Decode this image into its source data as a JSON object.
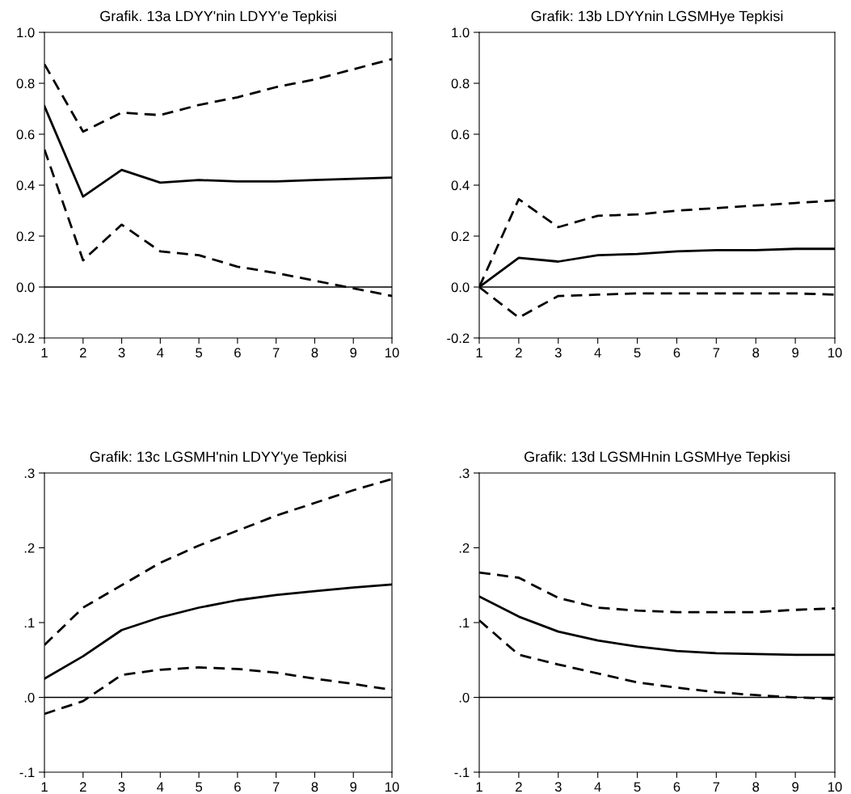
{
  "chart_data": [
    {
      "type": "line",
      "title": "Grafik. 13a LDYY'nin LDYY'e Tepkisi",
      "x": [
        1,
        2,
        3,
        4,
        5,
        6,
        7,
        8,
        9,
        10
      ],
      "xlim": [
        1,
        10
      ],
      "xticks": [
        1,
        2,
        3,
        4,
        5,
        6,
        7,
        8,
        9,
        10
      ],
      "ylim": [
        -0.2,
        1.0
      ],
      "yticks": [
        {
          "value": -0.2,
          "label": "-0.2"
        },
        {
          "value": 0,
          "label": "0.0"
        },
        {
          "value": 0.2,
          "label": "0.2"
        },
        {
          "value": 0.4,
          "label": "0.4"
        },
        {
          "value": 0.6,
          "label": "0.6"
        },
        {
          "value": 0.8,
          "label": "0.8"
        },
        {
          "value": 1.0,
          "label": "1.0"
        }
      ],
      "grid": false,
      "legend": false,
      "ref_lines": [
        {
          "axis": "y",
          "value": 0,
          "color": "#000000",
          "line_style": "solid"
        }
      ],
      "series": [
        {
          "color": "#000000",
          "line_style": "solid",
          "values": [
            0.71,
            0.355,
            0.46,
            0.41,
            0.42,
            0.415,
            0.415,
            0.42,
            0.425,
            0.43
          ]
        },
        {
          "color": "#000000",
          "line_style": "dashed",
          "values": [
            0.875,
            0.61,
            0.685,
            0.675,
            0.715,
            0.745,
            0.785,
            0.815,
            0.855,
            0.895
          ]
        },
        {
          "color": "#000000",
          "line_style": "dashed",
          "values": [
            0.54,
            0.105,
            0.245,
            0.14,
            0.125,
            0.08,
            0.055,
            0.025,
            -0.005,
            -0.035
          ]
        }
      ]
    },
    {
      "type": "line",
      "title": "Grafik: 13b LDYYnin LGSMHye Tepkisi",
      "x": [
        1,
        2,
        3,
        4,
        5,
        6,
        7,
        8,
        9,
        10
      ],
      "xlim": [
        1,
        10
      ],
      "xticks": [
        1,
        2,
        3,
        4,
        5,
        6,
        7,
        8,
        9,
        10
      ],
      "ylim": [
        -0.2,
        1.0
      ],
      "yticks": [
        {
          "value": -0.2,
          "label": "-0.2"
        },
        {
          "value": 0,
          "label": "0.0"
        },
        {
          "value": 0.2,
          "label": "0.2"
        },
        {
          "value": 0.4,
          "label": "0.4"
        },
        {
          "value": 0.6,
          "label": "0.6"
        },
        {
          "value": 0.8,
          "label": "0.8"
        },
        {
          "value": 1.0,
          "label": "1.0"
        }
      ],
      "grid": false,
      "legend": false,
      "ref_lines": [
        {
          "axis": "y",
          "value": 0,
          "color": "#000000",
          "line_style": "solid"
        }
      ],
      "series": [
        {
          "color": "#000000",
          "line_style": "solid",
          "values": [
            0,
            0.115,
            0.1,
            0.125,
            0.13,
            0.14,
            0.145,
            0.145,
            0.15,
            0.15
          ]
        },
        {
          "color": "#000000",
          "line_style": "dashed",
          "values": [
            0,
            0.345,
            0.235,
            0.28,
            0.285,
            0.3,
            0.31,
            0.32,
            0.33,
            0.34
          ]
        },
        {
          "color": "#000000",
          "line_style": "dashed",
          "values": [
            0,
            -0.12,
            -0.035,
            -0.03,
            -0.025,
            -0.025,
            -0.025,
            -0.025,
            -0.025,
            -0.03
          ]
        }
      ]
    },
    {
      "type": "line",
      "title": "Grafik: 13c LGSMH'nin LDYY'ye Tepkisi",
      "x": [
        1,
        2,
        3,
        4,
        5,
        6,
        7,
        8,
        9,
        10
      ],
      "xlim": [
        1,
        10
      ],
      "xticks": [
        1,
        2,
        3,
        4,
        5,
        6,
        7,
        8,
        9,
        10
      ],
      "ylim": [
        -0.1,
        0.3
      ],
      "yticks": [
        {
          "value": -0.1,
          "label": "-.1"
        },
        {
          "value": 0,
          "label": ".0"
        },
        {
          "value": 0.1,
          "label": ".1"
        },
        {
          "value": 0.2,
          "label": ".2"
        },
        {
          "value": 0.3,
          "label": ".3"
        }
      ],
      "grid": false,
      "legend": false,
      "ref_lines": [
        {
          "axis": "y",
          "value": 0,
          "color": "#000000",
          "line_style": "solid"
        }
      ],
      "series": [
        {
          "color": "#000000",
          "line_style": "solid",
          "values": [
            0.025,
            0.055,
            0.09,
            0.107,
            0.12,
            0.13,
            0.137,
            0.142,
            0.147,
            0.151
          ]
        },
        {
          "color": "#000000",
          "line_style": "dashed",
          "values": [
            0.07,
            0.12,
            0.15,
            0.18,
            0.203,
            0.223,
            0.243,
            0.26,
            0.277,
            0.292
          ]
        },
        {
          "color": "#000000",
          "line_style": "dashed",
          "values": [
            -0.022,
            -0.005,
            0.03,
            0.037,
            0.04,
            0.038,
            0.033,
            0.025,
            0.018,
            0.01
          ]
        }
      ]
    },
    {
      "type": "line",
      "title": "Grafik: 13d LGSMHnin LGSMHye Tepkisi",
      "x": [
        1,
        2,
        3,
        4,
        5,
        6,
        7,
        8,
        9,
        10
      ],
      "xlim": [
        1,
        10
      ],
      "xticks": [
        1,
        2,
        3,
        4,
        5,
        6,
        7,
        8,
        9,
        10
      ],
      "ylim": [
        -0.1,
        0.3
      ],
      "yticks": [
        {
          "value": -0.1,
          "label": "-.1"
        },
        {
          "value": 0,
          "label": ".0"
        },
        {
          "value": 0.1,
          "label": ".1"
        },
        {
          "value": 0.2,
          "label": ".2"
        },
        {
          "value": 0.3,
          "label": ".3"
        }
      ],
      "grid": false,
      "legend": false,
      "ref_lines": [
        {
          "axis": "y",
          "value": 0,
          "color": "#000000",
          "line_style": "solid"
        }
      ],
      "series": [
        {
          "color": "#000000",
          "line_style": "solid",
          "values": [
            0.135,
            0.108,
            0.088,
            0.076,
            0.068,
            0.062,
            0.059,
            0.058,
            0.057,
            0.057
          ]
        },
        {
          "color": "#000000",
          "line_style": "dashed",
          "values": [
            0.167,
            0.16,
            0.133,
            0.12,
            0.116,
            0.114,
            0.114,
            0.114,
            0.117,
            0.119
          ]
        },
        {
          "color": "#000000",
          "line_style": "dashed",
          "values": [
            0.103,
            0.057,
            0.044,
            0.032,
            0.02,
            0.013,
            0.007,
            0.003,
            0.0,
            -0.002
          ]
        }
      ]
    }
  ]
}
